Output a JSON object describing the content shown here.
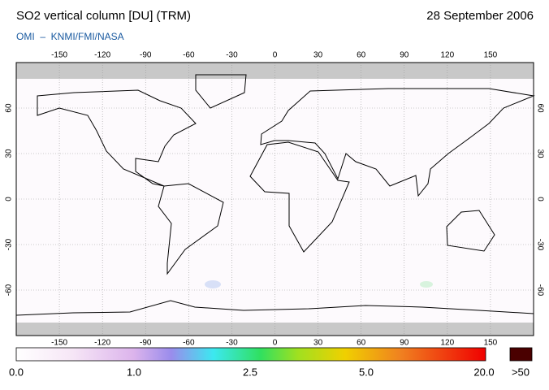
{
  "header": {
    "title": "SO2 vertical column [DU] (TRM)",
    "date": "28 September 2006",
    "credit": "OMI  –  KNMI/FMI/NASA"
  },
  "map": {
    "lon_ticks": [
      -150,
      -120,
      -90,
      -60,
      -30,
      0,
      30,
      60,
      90,
      120,
      150
    ],
    "lat_ticks": [
      60,
      30,
      0,
      -30,
      -60
    ]
  },
  "colorbar": {
    "labels": [
      "0.0",
      "1.0",
      "2.5",
      "5.0",
      "20.0"
    ],
    "overflow_label": ">50"
  }
}
